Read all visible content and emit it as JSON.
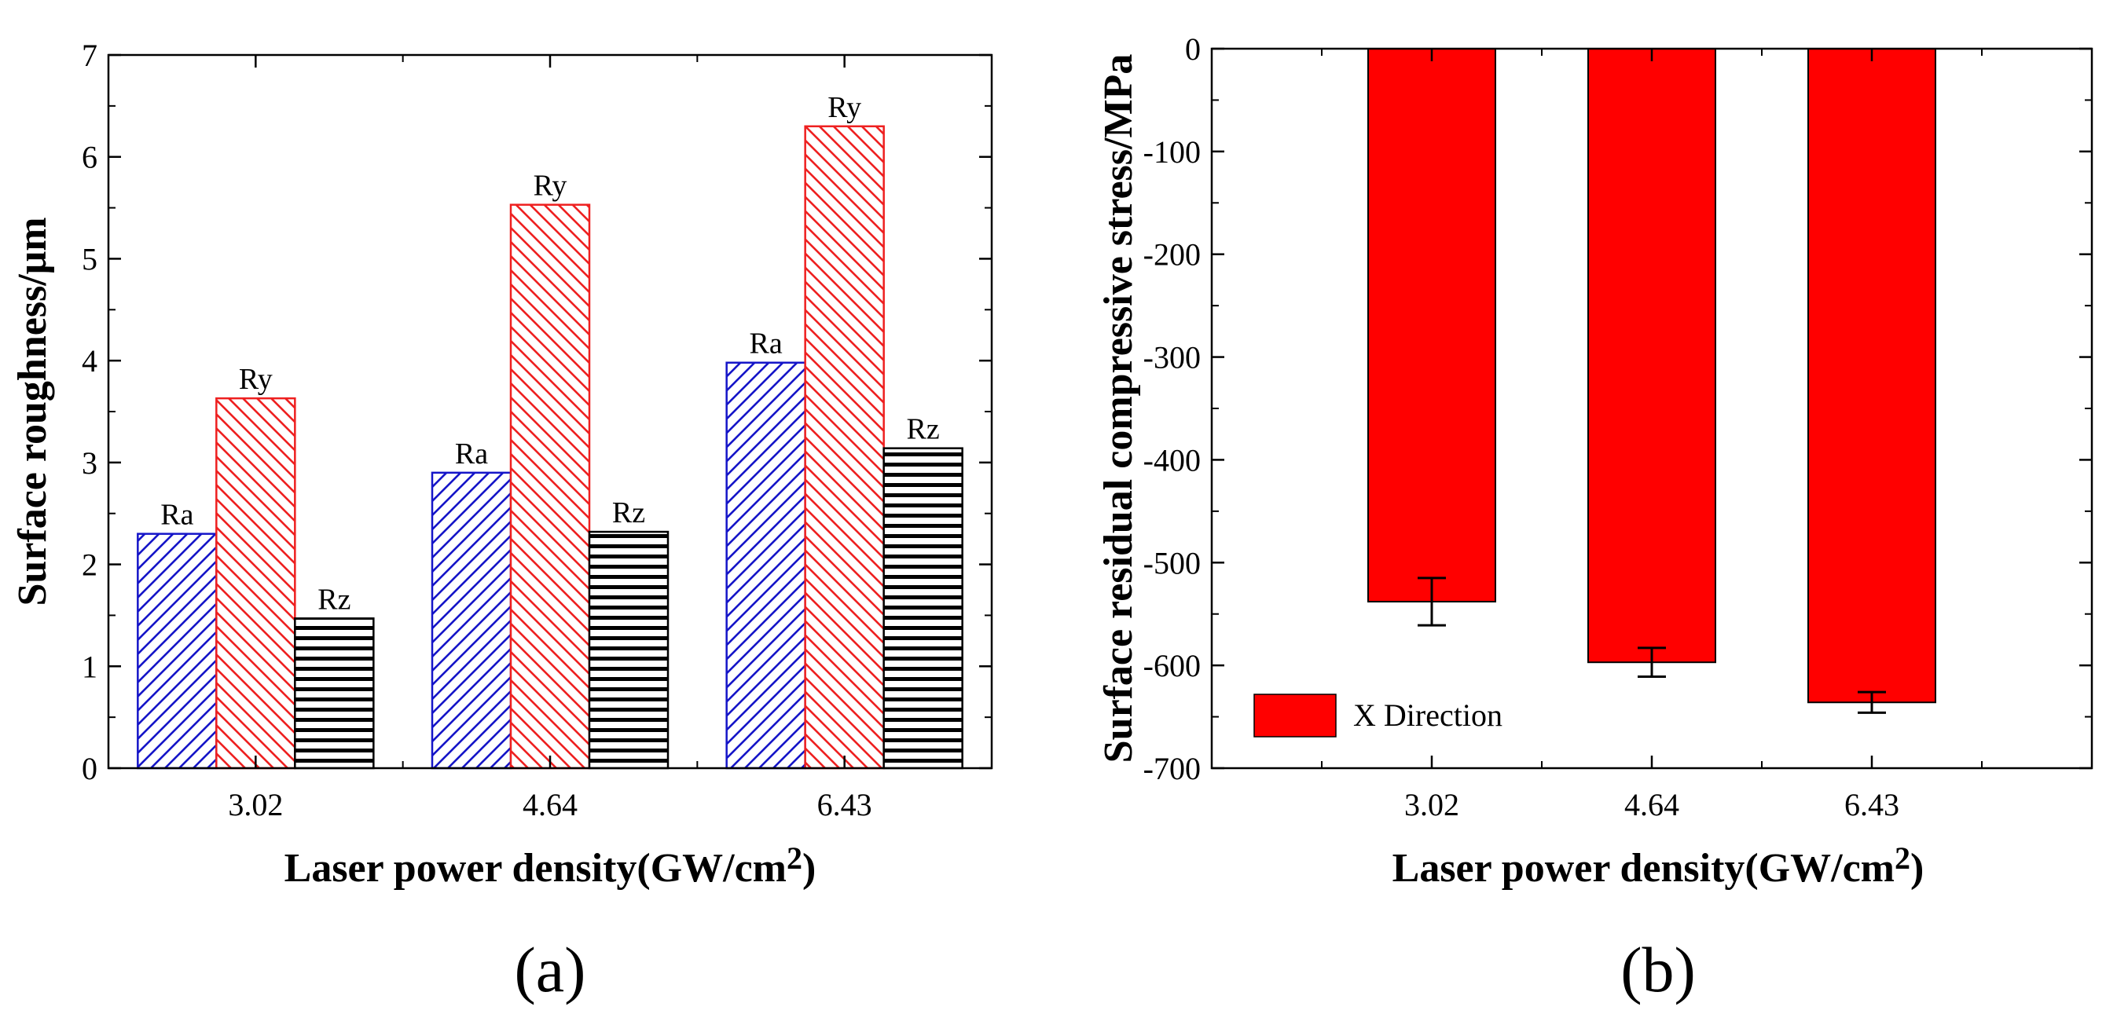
{
  "chart_data": [
    {
      "type": "bar",
      "panel_label": "(a)",
      "title": "",
      "categories": [
        "3.02",
        "4.64",
        "6.43"
      ],
      "xlabel": "Laser power density(GW/cm2)",
      "xlabel_parts": {
        "main": "Laser power density(GW/cm",
        "superscript": "2",
        "close": ")"
      },
      "ylabel": "Surface roughness/μm",
      "ylim": [
        0,
        7
      ],
      "yticks": [
        0,
        1,
        2,
        3,
        4,
        5,
        6,
        7
      ],
      "grid": false,
      "legend": null,
      "series": [
        {
          "name": "Ra",
          "label": "Ra",
          "color": "#1515c8",
          "pattern": "diagonal",
          "values": [
            2.3,
            2.9,
            3.98
          ]
        },
        {
          "name": "Ry",
          "label": "Ry",
          "color": "#ee2020",
          "pattern": "back-diagonal",
          "values": [
            3.63,
            5.53,
            6.3
          ]
        },
        {
          "name": "Rz",
          "label": "Rz",
          "color": "#000000",
          "pattern": "horizontal",
          "values": [
            1.47,
            2.32,
            3.14
          ]
        }
      ]
    },
    {
      "type": "bar",
      "panel_label": "(b)",
      "title": "",
      "categories": [
        "3.02",
        "4.64",
        "6.43"
      ],
      "xlabel": "Laser power density(GW/cm2)",
      "xlabel_parts": {
        "main": "Laser power density(GW/cm",
        "superscript": "2",
        "close": ")"
      },
      "ylabel": "Surface residual compressive stress/MPa",
      "ylim": [
        -700,
        0
      ],
      "yticks": [
        0,
        -100,
        -200,
        -300,
        -400,
        -500,
        -600,
        -700
      ],
      "grid": false,
      "legend": {
        "placement": "bottom-left"
      },
      "series": [
        {
          "name": "X Direction",
          "color": "#ff0000",
          "values": [
            -538,
            -597,
            -636
          ],
          "error": [
            23,
            14,
            10
          ]
        }
      ]
    }
  ]
}
